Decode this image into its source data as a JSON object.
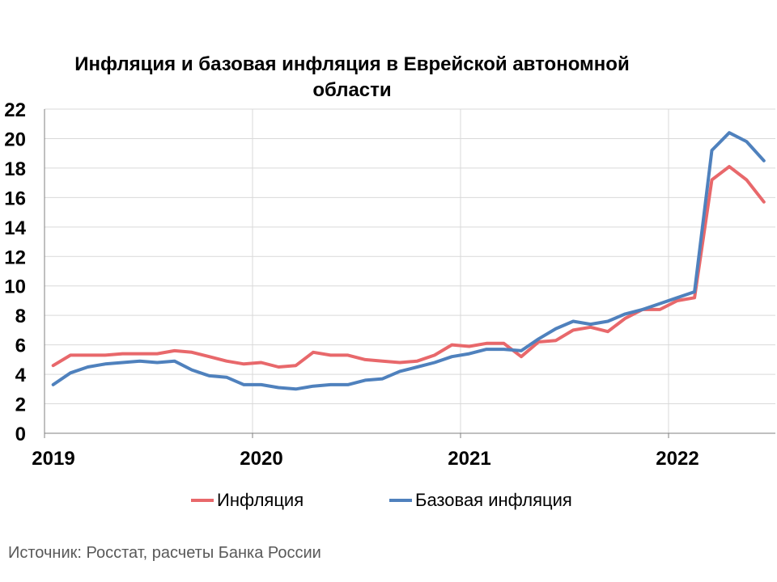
{
  "chart_data": {
    "type": "line",
    "title": "Инфляция и базовая инфляция в Еврейской автономной области",
    "ylim": [
      0,
      22
    ],
    "yticks": [
      0,
      2,
      4,
      6,
      8,
      10,
      12,
      14,
      16,
      18,
      20,
      22
    ],
    "xtick_labels": [
      "2019",
      "2020",
      "2021",
      "2022"
    ],
    "x": [
      "2019-01",
      "2019-02",
      "2019-03",
      "2019-04",
      "2019-05",
      "2019-06",
      "2019-07",
      "2019-08",
      "2019-09",
      "2019-10",
      "2019-11",
      "2019-12",
      "2020-01",
      "2020-02",
      "2020-03",
      "2020-04",
      "2020-05",
      "2020-06",
      "2020-07",
      "2020-08",
      "2020-09",
      "2020-10",
      "2020-11",
      "2020-12",
      "2021-01",
      "2021-02",
      "2021-03",
      "2021-04",
      "2021-05",
      "2021-06",
      "2021-07",
      "2021-08",
      "2021-09",
      "2021-10",
      "2021-11",
      "2021-12",
      "2022-01",
      "2022-02",
      "2022-03",
      "2022-04",
      "2022-05",
      "2022-06"
    ],
    "series": [
      {
        "name": "Инфляция",
        "color": "#E8686B",
        "values": [
          4.6,
          5.3,
          5.3,
          5.3,
          5.4,
          5.4,
          5.4,
          5.6,
          5.5,
          5.2,
          4.9,
          4.7,
          4.8,
          4.5,
          4.6,
          5.5,
          5.3,
          5.3,
          5.0,
          4.9,
          4.8,
          4.9,
          5.3,
          6.0,
          5.9,
          6.1,
          6.1,
          5.2,
          6.2,
          6.3,
          7.0,
          7.2,
          6.9,
          7.8,
          8.4,
          8.4,
          9.0,
          9.2,
          17.2,
          18.1,
          17.2,
          15.7
        ]
      },
      {
        "name": "Базовая инфляция",
        "color": "#4F81BD",
        "values": [
          3.3,
          4.1,
          4.5,
          4.7,
          4.8,
          4.9,
          4.8,
          4.9,
          4.3,
          3.9,
          3.8,
          3.3,
          3.3,
          3.1,
          3.0,
          3.2,
          3.3,
          3.3,
          3.6,
          3.7,
          4.2,
          4.5,
          4.8,
          5.2,
          5.4,
          5.7,
          5.7,
          5.6,
          6.4,
          7.1,
          7.6,
          7.4,
          7.6,
          8.1,
          8.4,
          8.8,
          9.2,
          9.6,
          19.2,
          20.4,
          19.8,
          18.5
        ]
      }
    ],
    "grid": true,
    "legend_position": "bottom"
  },
  "legend": {
    "item0": "Инфляция",
    "item1": "Базовая инфляция"
  },
  "source_note": "Источник: Росстат, расчеты Банка России"
}
